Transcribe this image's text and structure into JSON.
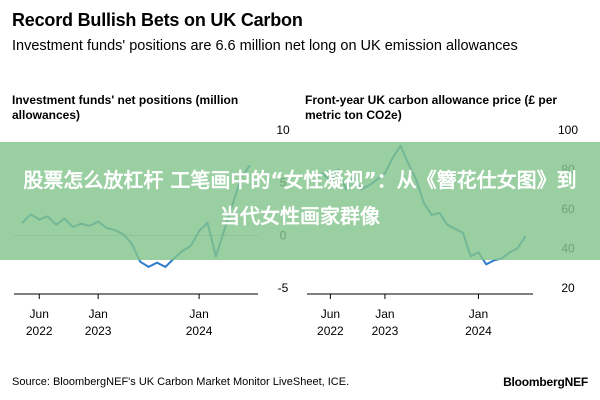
{
  "header": {
    "title": "Record Bullish Bets on UK Carbon",
    "subtitle": "Investment funds' positions are 6.6 million net long on UK emission allowances"
  },
  "overlay": {
    "text": "股票怎么放杠杆 工笔画中的“女性凝视”：从《簪花仕女图》到当代女性画家群像"
  },
  "footer": {
    "source": "Source: BloombergNEF's UK Carbon Market Monitor LiveSheet, ICE.",
    "brand": "BloombergNEF"
  },
  "colors": {
    "series": "#2f7cc9",
    "banner": "#82c48c"
  },
  "chart_data": [
    {
      "type": "line",
      "title": "Investment funds' net positions (million allowances)",
      "x_labels": [
        "Jun 2022",
        "Jan 2023",
        "Jan 2024"
      ],
      "y_ticks": [
        10,
        5,
        0,
        -5
      ],
      "ylim": [
        -5,
        10
      ],
      "axis_side": "right",
      "series": [
        {
          "x": [
            "2022-04",
            "2022-05",
            "2022-06",
            "2022-07",
            "2022-08",
            "2022-09",
            "2022-10",
            "2022-11",
            "2022-12",
            "2023-01",
            "2023-02",
            "2023-03",
            "2023-04",
            "2023-05",
            "2023-06",
            "2023-07",
            "2023-08",
            "2023-09",
            "2023-10",
            "2023-11",
            "2023-12",
            "2024-01",
            "2024-02",
            "2024-03",
            "2024-04",
            "2024-05",
            "2024-06",
            "2024-07"
          ],
          "y": [
            1.2,
            2.0,
            1.5,
            1.8,
            1.0,
            1.6,
            0.8,
            1.1,
            0.9,
            1.3,
            0.7,
            0.5,
            0.1,
            -0.8,
            -2.5,
            -3.0,
            -2.6,
            -3.0,
            -2.2,
            -1.5,
            -1.0,
            0.4,
            1.2,
            -2.0,
            0.5,
            3.0,
            5.5,
            6.6
          ]
        }
      ]
    },
    {
      "type": "line",
      "title": "Front-year UK carbon allowance price (£ per metric ton CO2e)",
      "x_labels": [
        "Jun 2022",
        "Jan 2023",
        "Jan 2024"
      ],
      "y_ticks": [
        100,
        80,
        60,
        40,
        20
      ],
      "ylim": [
        20,
        100
      ],
      "axis_side": "right",
      "series": [
        {
          "x": [
            "2022-04",
            "2022-05",
            "2022-06",
            "2022-07",
            "2022-08",
            "2022-09",
            "2022-10",
            "2022-11",
            "2022-12",
            "2023-01",
            "2023-02",
            "2023-03",
            "2023-04",
            "2023-05",
            "2023-06",
            "2023-07",
            "2023-08",
            "2023-09",
            "2023-10",
            "2023-11",
            "2023-12",
            "2024-01",
            "2024-02",
            "2024-03",
            "2024-04",
            "2024-05",
            "2024-06",
            "2024-07"
          ],
          "y": [
            75,
            78,
            74,
            80,
            70,
            76,
            70,
            72,
            75,
            78,
            86,
            92,
            83,
            75,
            63,
            57,
            58,
            52,
            50,
            48,
            36,
            38,
            32,
            34,
            35,
            38,
            40,
            46
          ]
        }
      ]
    }
  ]
}
